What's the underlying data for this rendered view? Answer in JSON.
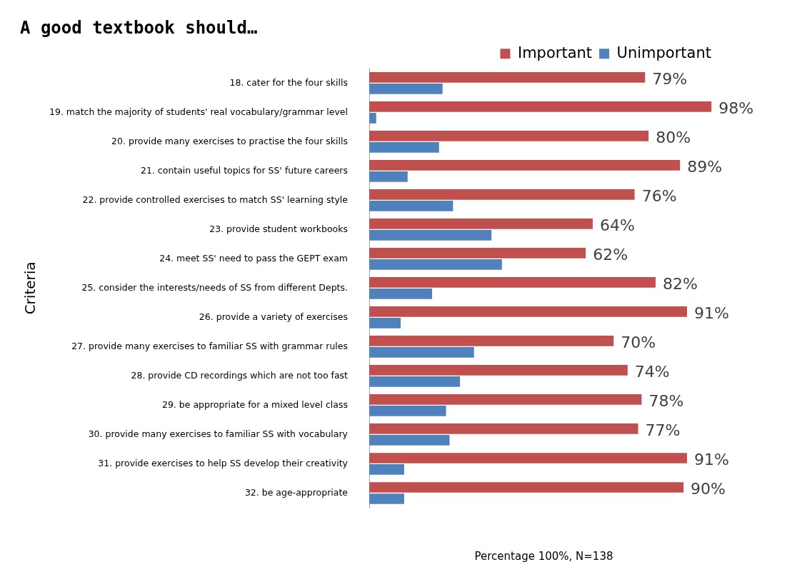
{
  "chart_data": {
    "type": "bar",
    "orientation": "horizontal",
    "title": "A good textbook should…",
    "ylabel": "Criteria",
    "xlabel": "Percentage 100%, N=138",
    "categories": [
      "18. cater for the four skills",
      "19. match the majority of students' real vocabulary/grammar level",
      "20. provide many exercises to practise the four skills",
      "21. contain useful topics for SS' future careers",
      "22. provide controlled exercises to match SS' learning style",
      "23. provide student workbooks",
      "24. meet SS' need to pass the GEPT exam",
      "25. consider the interests/needs of SS from different Depts.",
      "26. provide a variety of exercises",
      "27. provide many exercises to familiar SS with grammar rules",
      "28. provide CD recordings which are not too fast",
      "29. be appropriate for a mixed level class",
      "30. provide many exercises to familiar SS with vocabulary",
      "31. provide exercises to help SS develop their creativity",
      "32. be age-appropriate"
    ],
    "series": [
      {
        "name": "Important",
        "color": "#c0504d",
        "values": [
          79,
          98,
          80,
          89,
          76,
          64,
          62,
          82,
          91,
          70,
          74,
          78,
          77,
          91,
          90
        ],
        "value_labels": [
          "79%",
          "98%",
          "80%",
          "89%",
          "76%",
          "64%",
          "62%",
          "82%",
          "91%",
          "70%",
          "74%",
          "78%",
          "77%",
          "91%",
          "90%"
        ]
      },
      {
        "name": "Unimportant",
        "color": "#4f81bd",
        "values": [
          21,
          2,
          20,
          11,
          24,
          35,
          38,
          18,
          9,
          30,
          26,
          22,
          23,
          10,
          10
        ]
      }
    ],
    "legend": "top right"
  }
}
